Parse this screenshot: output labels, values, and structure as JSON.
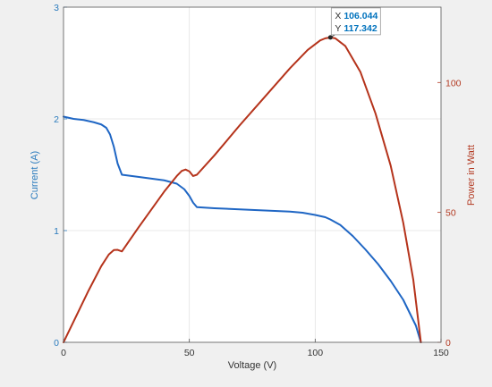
{
  "chart_data": {
    "type": "line",
    "xlabel": "Voltage (V)",
    "ylabel_left": "Current (A)",
    "ylabel_right": "Power in Watt",
    "xlim": [
      0,
      150
    ],
    "ylim_left": [
      0,
      3
    ],
    "ylim_right": [
      0,
      129
    ],
    "x_ticks": [
      0,
      50,
      100,
      150
    ],
    "y_ticks_left": [
      0,
      1,
      2,
      3
    ],
    "y_ticks_right": [
      0,
      50,
      100
    ],
    "grid": true,
    "colors": {
      "current": "#1f66c4",
      "power": "#b5331b",
      "left_axis": "#2b7bbd",
      "right_axis": "#b33a22",
      "x_axis": "#333333"
    },
    "series": [
      {
        "axis": "left",
        "x": [
          0,
          4,
          8,
          12,
          15,
          17,
          18.5,
          20,
          21.5,
          23.2,
          30,
          40,
          45,
          48,
          50,
          51.5,
          53,
          60,
          70,
          80,
          90,
          95,
          100,
          104,
          106,
          110,
          115,
          120,
          125,
          130,
          135,
          140,
          142
        ],
        "y": [
          2.02,
          2.0,
          1.99,
          1.97,
          1.95,
          1.92,
          1.86,
          1.75,
          1.6,
          1.5,
          1.48,
          1.45,
          1.42,
          1.37,
          1.31,
          1.25,
          1.21,
          1.2,
          1.19,
          1.18,
          1.17,
          1.16,
          1.14,
          1.12,
          1.1,
          1.05,
          0.95,
          0.83,
          0.7,
          0.55,
          0.38,
          0.15,
          0
        ]
      },
      {
        "axis": "right",
        "x": [
          0,
          5,
          10,
          15,
          18,
          20,
          21.5,
          23.2,
          30,
          40,
          45,
          47,
          48.5,
          50,
          51.5,
          53,
          60,
          70,
          80,
          90,
          97,
          102,
          104,
          106.044,
          108,
          112,
          118,
          124,
          130,
          135,
          139,
          142
        ],
        "y": [
          0,
          10,
          20,
          29.3,
          33.8,
          35.5,
          35.6,
          35,
          44.5,
          58,
          64,
          66,
          66.5,
          65.8,
          64,
          64.5,
          72,
          83.5,
          94.5,
          105.5,
          112.5,
          116.2,
          117,
          117.342,
          117,
          114,
          104,
          88,
          68,
          46,
          24,
          0
        ]
      }
    ],
    "datatip": {
      "x_label": "X",
      "x_value": "106.044",
      "y_label": "Y",
      "y_value": "117.342",
      "x": 106.044,
      "y": 117.342,
      "axis": "right"
    }
  }
}
